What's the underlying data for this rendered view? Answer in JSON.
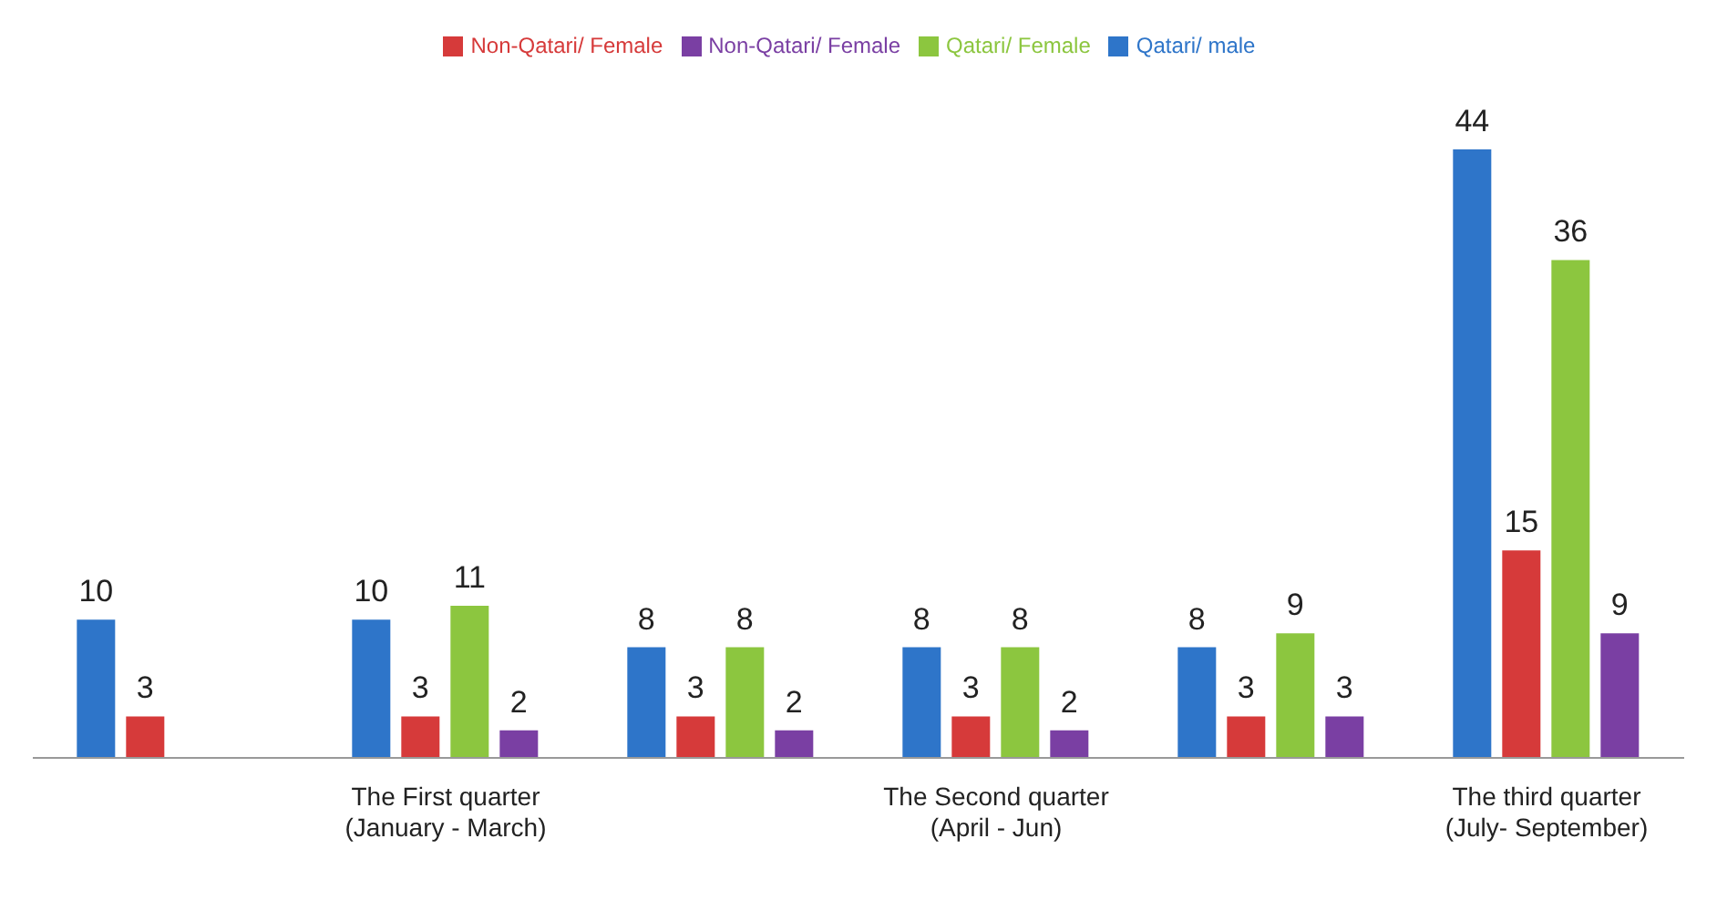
{
  "chart_data": {
    "type": "bar",
    "categories": [
      null,
      "The First quarter\n(January - March)",
      null,
      "The Second quarter\n(April - Jun)",
      null,
      "The third quarter\n(July- September)"
    ],
    "series": [
      {
        "name": "Qatari/ male",
        "color": "#2e75c9",
        "values": [
          10,
          10,
          8,
          8,
          8,
          44
        ]
      },
      {
        "name": "Non-Qatari/ Female",
        "color": "#d63a3a",
        "values": [
          3,
          3,
          3,
          3,
          3,
          15
        ]
      },
      {
        "name": "Qatari/ Female",
        "color": "#8cc63f",
        "values": [
          null,
          11,
          8,
          8,
          9,
          36
        ]
      },
      {
        "name": "Non-Qatari/ Female",
        "color": "#7a3fa3",
        "values": [
          null,
          2,
          2,
          2,
          3,
          9
        ]
      }
    ],
    "data_labels": true,
    "legend": "top",
    "tick_labels": "x",
    "grid": false
  }
}
